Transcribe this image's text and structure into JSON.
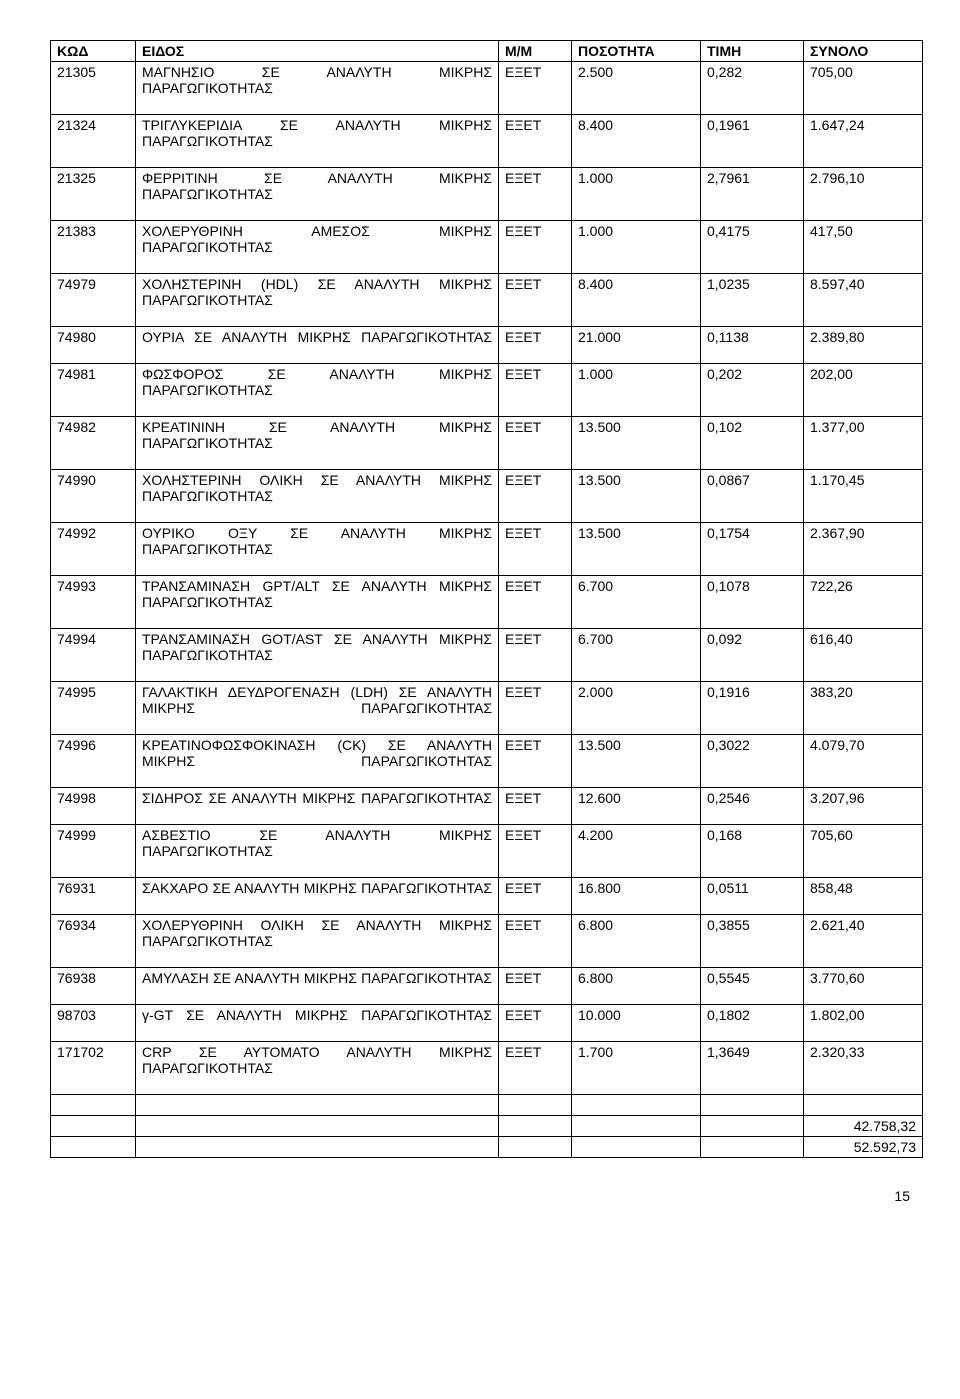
{
  "columns": [
    "ΚΩΔ",
    "ΕΙΔΟΣ",
    "Μ/Μ",
    "ΠΟΣΟΤΗΤΑ",
    "ΤΙΜΗ",
    "ΣΥΝΟΛΟ"
  ],
  "rows": [
    {
      "code": "21305",
      "desc": "ΜΑΓΝΗΣΙΟ ΣΕ ΑΝΑΛΥΤΗ ΜΙΚΡΗΣ ΠΑΡΑΓΩΓΙΚΟΤΗΤΑΣ",
      "unit": "ΕΞΕΤ",
      "qty": "2.500",
      "price": "0,282",
      "total": "705,00"
    },
    {
      "code": "21324",
      "desc": "ΤΡΙΓΛΥΚΕΡΙΔΙΑ ΣΕ ΑΝΑΛΥΤΗ ΜΙΚΡΗΣ ΠΑΡΑΓΩΓΙΚΟΤΗΤΑΣ",
      "unit": "ΕΞΕΤ",
      "qty": "8.400",
      "price": "0,1961",
      "total": "1.647,24"
    },
    {
      "code": "21325",
      "desc": "ΦΕΡΡΙΤΙΝΗ ΣΕ ΑΝΑΛΥΤΗ ΜΙΚΡΗΣ ΠΑΡΑΓΩΓΙΚΟΤΗΤΑΣ",
      "unit": "ΕΞΕΤ",
      "qty": "1.000",
      "price": "2,7961",
      "total": "2.796,10"
    },
    {
      "code": "21383",
      "desc": "ΧΟΛΕΡΥΘΡΙΝΗ ΑΜΕΣΟΣ ΜΙΚΡΗΣ ΠΑΡΑΓΩΓΙΚΟΤΗΤΑΣ",
      "unit": "ΕΞΕΤ",
      "qty": "1.000",
      "price": "0,4175",
      "total": "417,50"
    },
    {
      "code": "74979",
      "desc": "ΧΟΛΗΣΤΕΡΙΝΗ (HDL) ΣΕ ΑΝΑΛΥΤΗ ΜΙΚΡΗΣ ΠΑΡΑΓΩΓΙΚΟΤΗΤΑΣ",
      "unit": "ΕΞΕΤ",
      "qty": "8.400",
      "price": "1,0235",
      "total": "8.597,40"
    },
    {
      "code": "74980",
      "desc": "ΟΥΡΙΑ ΣΕ ΑΝΑΛΥΤΗ ΜΙΚΡΗΣ ΠΑΡΑΓΩΓΙΚΟΤΗΤΑΣ",
      "unit": "ΕΞΕΤ",
      "qty": "21.000",
      "price": "0,1138",
      "total": "2.389,80"
    },
    {
      "code": "74981",
      "desc": "ΦΩΣΦΟΡΟΣ ΣΕ ΑΝΑΛΥΤΗ ΜΙΚΡΗΣ ΠΑΡΑΓΩΓΙΚΟΤΗΤΑΣ",
      "unit": "ΕΞΕΤ",
      "qty": "1.000",
      "price": "0,202",
      "total": "202,00"
    },
    {
      "code": "74982",
      "desc": "ΚΡΕΑΤΙΝΙΝΗ ΣΕ ΑΝΑΛΥΤΗ ΜΙΚΡΗΣ ΠΑΡΑΓΩΓΙΚΟΤΗΤΑΣ",
      "unit": "ΕΞΕΤ",
      "qty": "13.500",
      "price": "0,102",
      "total": "1.377,00"
    },
    {
      "code": "74990",
      "desc": "ΧΟΛΗΣΤΕΡΙΝΗ ΟΛΙΚΗ ΣΕ ΑΝΑΛΥΤΗ ΜΙΚΡΗΣ ΠΑΡΑΓΩΓΙΚΟΤΗΤΑΣ",
      "unit": "ΕΞΕΤ",
      "qty": "13.500",
      "price": "0,0867",
      "total": "1.170,45"
    },
    {
      "code": "74992",
      "desc": "ΟΥΡΙΚΟ ΟΞΥ ΣΕ ΑΝΑΛΥΤΗ ΜΙΚΡΗΣ ΠΑΡΑΓΩΓΙΚΟΤΗΤΑΣ",
      "unit": "ΕΞΕΤ",
      "qty": "13.500",
      "price": "0,1754",
      "total": "2.367,90"
    },
    {
      "code": "74993",
      "desc": "ΤΡΑΝΣΑΜΙΝΑΣΗ GPT/ALT ΣΕ ΑΝΑΛΥΤΗ ΜΙΚΡΗΣ ΠΑΡΑΓΩΓΙΚΟΤΗΤΑΣ",
      "unit": "ΕΞΕΤ",
      "qty": "6.700",
      "price": "0,1078",
      "total": "722,26"
    },
    {
      "code": "74994",
      "desc": "ΤΡΑΝΣΑΜΙΝΑΣΗ GOT/AST ΣΕ ΑΝΑΛΥΤΗ ΜΙΚΡΗΣ ΠΑΡΑΓΩΓΙΚΟΤΗΤΑΣ",
      "unit": "ΕΞΕΤ",
      "qty": "6.700",
      "price": "0,092",
      "total": "616,40"
    },
    {
      "code": "74995",
      "desc": "ΓΑΛΑΚΤΙΚΗ ΔΕΥΔΡΟΓΕΝΑΣΗ (LDH) ΣΕ ΑΝΑΛΥΤΗ ΜΙΚΡΗΣ ΠΑΡΑΓΩΓΙΚΟΤΗΤΑΣ",
      "unit": "ΕΞΕΤ",
      "qty": "2.000",
      "price": "0,1916",
      "total": "383,20"
    },
    {
      "code": "74996",
      "desc": "ΚΡΕΑΤΙΝΟΦΩΣΦΟΚΙΝΑΣΗ (CK) ΣΕ ΑΝΑΛΥΤΗ ΜΙΚΡΗΣ ΠΑΡΑΓΩΓΙΚΟΤΗΤΑΣ",
      "unit": "ΕΞΕΤ",
      "qty": "13.500",
      "price": "0,3022",
      "total": "4.079,70"
    },
    {
      "code": "74998",
      "desc": "ΣΙΔΗΡΟΣ ΣΕ ΑΝΑΛΥΤΗ ΜΙΚΡΗΣ ΠΑΡΑΓΩΓΙΚΟΤΗΤΑΣ",
      "unit": "ΕΞΕΤ",
      "qty": "12.600",
      "price": "0,2546",
      "total": "3.207,96"
    },
    {
      "code": "74999",
      "desc": "ΑΣΒΕΣΤΙΟ ΣΕ ΑΝΑΛΥΤΗ ΜΙΚΡΗΣ ΠΑΡΑΓΩΓΙΚΟΤΗΤΑΣ",
      "unit": "ΕΞΕΤ",
      "qty": "4.200",
      "price": "0,168",
      "total": "705,60"
    },
    {
      "code": "76931",
      "desc": "ΣΑΚΧΑΡΟ ΣΕ ΑΝΑΛΥΤΗ ΜΙΚΡΗΣ ΠΑΡΑΓΩΓΙΚΟΤΗΤΑΣ",
      "unit": "ΕΞΕΤ",
      "qty": "16.800",
      "price": "0,0511",
      "total": "858,48"
    },
    {
      "code": "76934",
      "desc": "ΧΟΛΕΡΥΘΡΙΝΗ ΟΛΙΚΗ ΣΕ ΑΝΑΛΥΤΗ ΜΙΚΡΗΣ ΠΑΡΑΓΩΓΙΚΟΤΗΤΑΣ",
      "unit": "ΕΞΕΤ",
      "qty": "6.800",
      "price": "0,3855",
      "total": "2.621,40"
    },
    {
      "code": "76938",
      "desc": "ΑΜΥΛΑΣΗ ΣΕ ΑΝΑΛΥΤΗ ΜΙΚΡΗΣ ΠΑΡΑΓΩΓΙΚΟΤΗΤΑΣ",
      "unit": "ΕΞΕΤ",
      "qty": "6.800",
      "price": "0,5545",
      "total": "3.770,60"
    },
    {
      "code": "98703",
      "desc": "γ-GT ΣΕ ΑΝΑΛΥΤΗ ΜΙΚΡΗΣ ΠΑΡΑΓΩΓΙΚΟΤΗΤΑΣ",
      "unit": "ΕΞΕΤ",
      "qty": "10.000",
      "price": "0,1802",
      "total": "1.802,00"
    },
    {
      "code": "171702",
      "desc": "CRP ΣΕ ΑΥΤΟΜΑΤΟ ΑΝΑΛΥΤΗ ΜΙΚΡΗΣ ΠΑΡΑΓΩΓΙΚΟΤΗΤΑΣ",
      "unit": "ΕΞΕΤ",
      "qty": "1.700",
      "price": "1,3649",
      "total": "2.320,33"
    }
  ],
  "footer": [
    "42.758,32",
    "52.592,73"
  ],
  "pageNumber": "15"
}
